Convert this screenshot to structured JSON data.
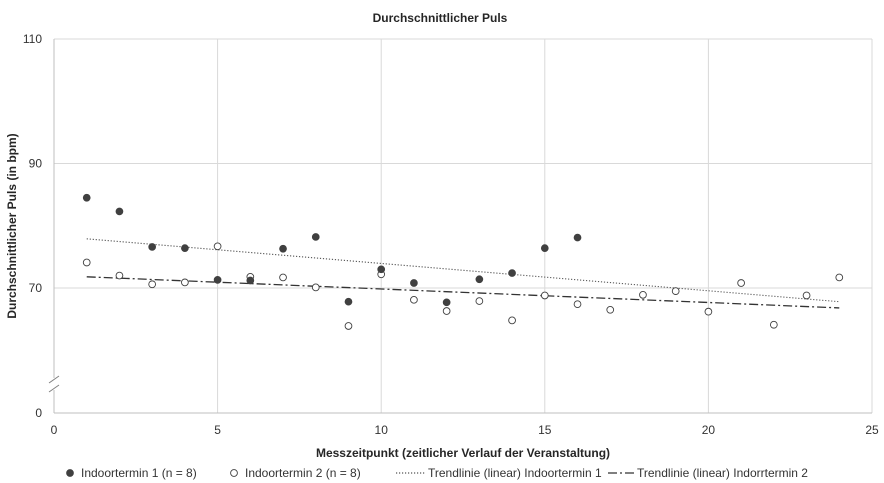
{
  "chart_data": {
    "type": "scatter",
    "title": "Durchschnittlicher Puls",
    "xlabel": "Messzeitpunkt (zeitlicher Verlauf der Veranstaltung)",
    "ylabel": "Durchschnittlicher Puls (in bpm)",
    "xlim": [
      0,
      25
    ],
    "ylim_display": [
      0,
      110
    ],
    "y_axis_break": "between 0 and 50",
    "x_ticks": [
      "0",
      "5",
      "10",
      "15",
      "20",
      "25"
    ],
    "y_ticks": [
      "0",
      "70",
      "90",
      "110"
    ],
    "grid": true,
    "legend_position": "bottom",
    "series": [
      {
        "name": "Indoortermin 1 (n = 8)",
        "marker": "filled-circle",
        "color": "#404040",
        "x": [
          1,
          2,
          3,
          4,
          5,
          6,
          7,
          8,
          9,
          10,
          11,
          12,
          13,
          14,
          15,
          16
        ],
        "y": [
          84.5,
          82.3,
          76.6,
          76.4,
          71.3,
          71.2,
          76.3,
          78.2,
          67.8,
          73.0,
          70.8,
          67.7,
          71.4,
          72.4,
          76.4,
          78.1
        ]
      },
      {
        "name": "Indoortermin 2 (n = 8)",
        "marker": "open-circle",
        "color": "#404040",
        "x": [
          1,
          2,
          3,
          4,
          5,
          6,
          7,
          8,
          9,
          10,
          11,
          12,
          13,
          14,
          15,
          16,
          17,
          18,
          19,
          20,
          21,
          22,
          23,
          24
        ],
        "y": [
          74.1,
          72.0,
          70.6,
          70.9,
          76.7,
          71.8,
          71.7,
          70.1,
          63.9,
          72.2,
          68.1,
          66.3,
          67.9,
          64.8,
          68.8,
          67.4,
          66.5,
          68.9,
          69.5,
          66.2,
          70.8,
          64.1,
          68.8,
          71.7
        ]
      },
      {
        "name": "Trendlinie (linear) Indoortermin 1",
        "kind": "trendline",
        "style": "dotted",
        "color": "#555555",
        "x": [
          1,
          24
        ],
        "y": [
          77.9,
          67.8
        ]
      },
      {
        "name": "Trendlinie (linear) Indorrtermin 2",
        "kind": "trendline",
        "style": "dash-dot",
        "color": "#333333",
        "x": [
          1,
          24
        ],
        "y": [
          71.8,
          66.8
        ]
      }
    ]
  }
}
